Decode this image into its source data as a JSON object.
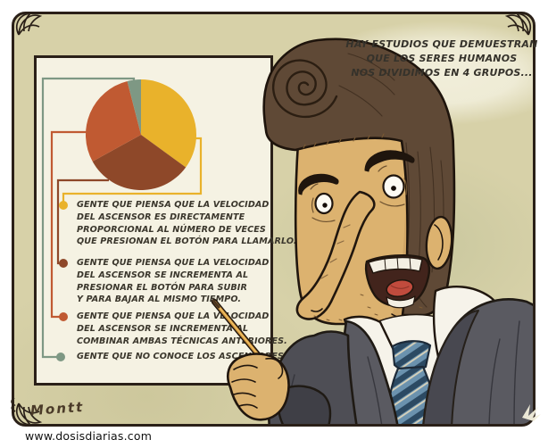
{
  "comic": {
    "speech_lines": [
      "HAY ESTUDIOS QUE DEMUESTRAN",
      "QUE LOS SERES HUMANOS",
      "NOS DIVIDIMOS EN 4 GRUPOS..."
    ],
    "signature": "Montt",
    "website": "www.dosisdiarias.com"
  },
  "chart_data": {
    "type": "pie",
    "title": "",
    "start_angle_deg": 0,
    "direction": "clockwise",
    "legend_position": "below-left",
    "slices": [
      {
        "label": "GENTE QUE PIENSA QUE LA VELOCIDAD DEL ASCENSOR ES DIRECTAMENTE PROPORCIONAL AL NÚMERO DE VECES QUE PRESIONAN EL BOTÓN PARA LLAMARLO.",
        "label_lines": [
          "GENTE QUE PIENSA QUE LA VELOCIDAD",
          "DEL ASCENSOR ES DIRECTAMENTE",
          "PROPORCIONAL AL NÚMERO DE VECES",
          "QUE PRESIONAN EL BOTÓN PARA LLAMARLO."
        ],
        "value": 35,
        "color": "#e9b22b"
      },
      {
        "label": "GENTE QUE PIENSA QUE LA VELOCIDAD DEL ASCENSOR SE INCREMENTA AL PRESIONAR EL BOTÓN PARA SUBIR Y PARA BAJAR AL MISMO TIEMPO.",
        "label_lines": [
          "GENTE QUE PIENSA QUE LA VELOCIDAD",
          "DEL ASCENSOR SE INCREMENTA AL",
          "PRESIONAR EL BOTÓN PARA SUBIR",
          "Y PARA BAJAR AL MISMO TIEMPO."
        ],
        "value": 32,
        "color": "#8e4829"
      },
      {
        "label": "GENTE QUE PIENSA QUE LA VELOCIDAD DEL ASCENSOR SE INCREMENTA AL COMBINAR AMBAS TÉCNICAS ANTERIORES.",
        "label_lines": [
          "GENTE QUE PIENSA QUE LA VELOCIDAD",
          "DEL ASCENSOR SE INCREMENTA AL",
          "COMBINAR AMBAS TÉCNICAS ANTERIORES."
        ],
        "value": 29,
        "color": "#c05a32"
      },
      {
        "label": "GENTE QUE NO CONOCE LOS ASCENSORES",
        "label_lines": [
          "GENTE QUE NO CONOCE LOS ASCENSORES"
        ],
        "value": 4,
        "color": "#7e9884"
      }
    ]
  },
  "colors": {
    "frame_background": "#d7d1a8",
    "panel_background": "#f5f2e3",
    "frame_line": "#2a2018",
    "text": "#3a362c"
  }
}
